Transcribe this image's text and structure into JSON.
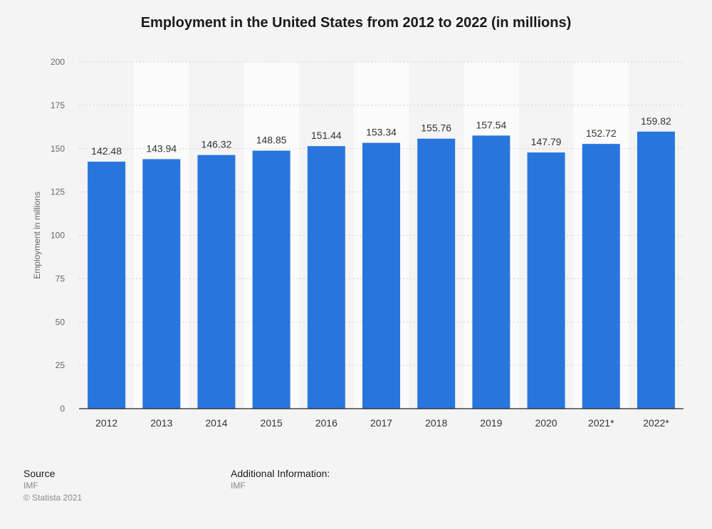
{
  "chart_data": {
    "type": "bar",
    "title": "Employment in the United States from 2012 to 2022 (in millions)",
    "xlabel": "",
    "ylabel": "Employment in millions",
    "categories": [
      "2012",
      "2013",
      "2014",
      "2015",
      "2016",
      "2017",
      "2018",
      "2019",
      "2020",
      "2021*",
      "2022*"
    ],
    "values": [
      142.48,
      143.94,
      146.32,
      148.85,
      151.44,
      153.34,
      155.76,
      157.54,
      147.79,
      152.72,
      159.82
    ],
    "value_labels": [
      "142.48",
      "143.94",
      "146.32",
      "148.85",
      "151.44",
      "153.34",
      "155.76",
      "157.54",
      "147.79",
      "152.72",
      "159.82"
    ],
    "ylim": [
      0,
      200
    ],
    "yticks": [
      0,
      25,
      50,
      75,
      100,
      125,
      150,
      175,
      200
    ],
    "grid": true,
    "bar_color": "#2876dd"
  },
  "footer": {
    "source_heading": "Source",
    "source_value": "IMF",
    "copyright": "© Statista 2021",
    "additional_heading": "Additional Information:",
    "additional_value": "IMF"
  }
}
